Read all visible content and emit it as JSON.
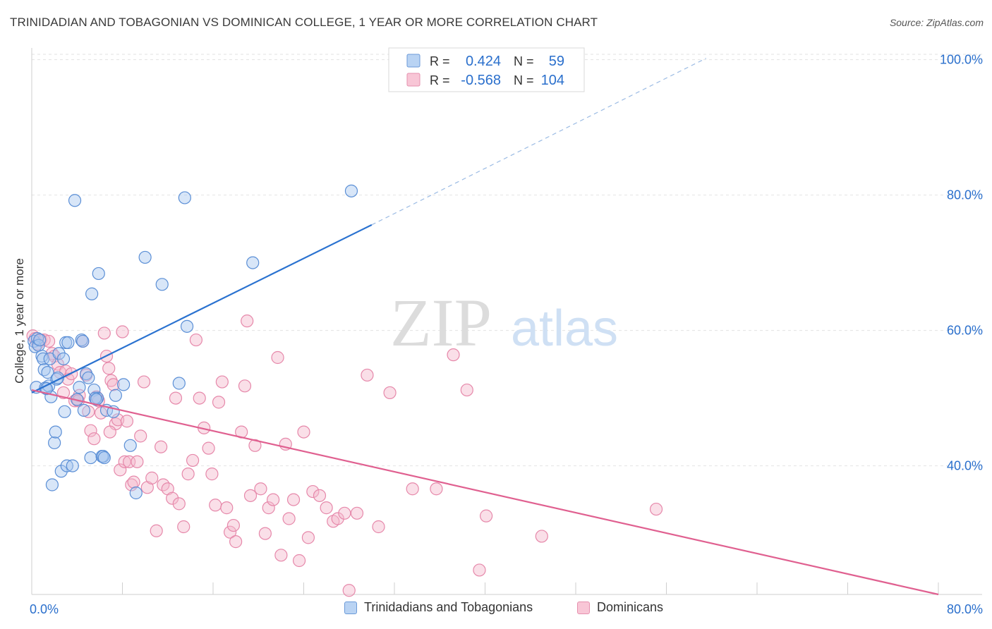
{
  "title": "TRINIDADIAN AND TOBAGONIAN VS DOMINICAN COLLEGE, 1 YEAR OR MORE CORRELATION CHART",
  "source": "Source: ZipAtlas.com",
  "watermark": {
    "zip": "ZIP",
    "atlas": "atlas"
  },
  "colors": {
    "blue_fill": "#a8c8f0",
    "blue_stroke": "#5b8fd6",
    "blue_line": "#2a72d0",
    "pink_fill": "#f5b8cc",
    "pink_stroke": "#e688aa",
    "pink_line": "#e06090",
    "value_text": "#2a6fcc",
    "grid": "#e2e2e2"
  },
  "legend_top": {
    "rows": [
      {
        "r_label": "R =",
        "r_value": "0.424",
        "n_label": "N =",
        "n_value": "59"
      },
      {
        "r_label": "R =",
        "r_value": "-0.568",
        "n_label": "N =",
        "n_value": "104"
      }
    ]
  },
  "legend_bottom": {
    "items": [
      {
        "label": "Trinidadians and Tobagonians"
      },
      {
        "label": "Dominicans"
      }
    ]
  },
  "chart_data": {
    "type": "scatter",
    "ylabel": "College, 1 year or more",
    "x_tick_labels": [
      "0.0%",
      "80.0%"
    ],
    "y_tick_labels": [
      "100.0%",
      "80.0%",
      "60.0%",
      "40.0%"
    ],
    "y_ticks": [
      100,
      80,
      60,
      40
    ],
    "xlim": [
      0,
      80
    ],
    "ylim": [
      21,
      101
    ],
    "grid": true,
    "series": [
      {
        "name": "Trinidadians and Tobagonians",
        "color": "blue",
        "points": [
          [
            0.2,
            58.4
          ],
          [
            0.3,
            57.6
          ],
          [
            0.5,
            58.8
          ],
          [
            0.4,
            51.6
          ],
          [
            0.6,
            57.8
          ],
          [
            0.9,
            56.2
          ],
          [
            1.0,
            55.8
          ],
          [
            1.1,
            54.2
          ],
          [
            1.2,
            51.5
          ],
          [
            1.4,
            53.8
          ],
          [
            1.5,
            51.8
          ],
          [
            1.6,
            55.8
          ],
          [
            1.7,
            50.2
          ],
          [
            1.8,
            37.2
          ],
          [
            2.0,
            43.4
          ],
          [
            2.1,
            45.0
          ],
          [
            2.2,
            52.8
          ],
          [
            2.4,
            56.6
          ],
          [
            2.6,
            39.2
          ],
          [
            2.8,
            55.8
          ],
          [
            2.9,
            48.0
          ],
          [
            3.0,
            58.2
          ],
          [
            3.1,
            40.0
          ],
          [
            3.2,
            58.2
          ],
          [
            3.6,
            40.0
          ],
          [
            3.8,
            79.2
          ],
          [
            4.0,
            49.8
          ],
          [
            4.2,
            51.6
          ],
          [
            4.4,
            58.6
          ],
          [
            4.5,
            58.4
          ],
          [
            4.6,
            48.2
          ],
          [
            4.8,
            53.6
          ],
          [
            5.0,
            53.0
          ],
          [
            5.2,
            41.2
          ],
          [
            5.3,
            65.4
          ],
          [
            5.5,
            51.2
          ],
          [
            5.8,
            50.0
          ],
          [
            5.6,
            50.0
          ],
          [
            5.7,
            49.8
          ],
          [
            5.9,
            68.4
          ],
          [
            6.2,
            41.4
          ],
          [
            6.3,
            41.4
          ],
          [
            6.4,
            41.2
          ],
          [
            6.6,
            48.2
          ],
          [
            7.4,
            50.4
          ],
          [
            7.2,
            48.0
          ],
          [
            8.1,
            52.0
          ],
          [
            8.7,
            43.0
          ],
          [
            9.2,
            36.0
          ],
          [
            10.0,
            70.8
          ],
          [
            11.5,
            66.8
          ],
          [
            13.0,
            52.2
          ],
          [
            13.5,
            79.6
          ],
          [
            13.7,
            60.6
          ],
          [
            19.5,
            70.0
          ],
          [
            28.2,
            80.6
          ],
          [
            0.7,
            58.6
          ],
          [
            1.3,
            51.4
          ],
          [
            2.3,
            53.0
          ]
        ]
      },
      {
        "name": "Dominicans",
        "color": "pink",
        "points": [
          [
            0.1,
            59.2
          ],
          [
            0.3,
            58.8
          ],
          [
            0.5,
            58.0
          ],
          [
            0.8,
            58.6
          ],
          [
            1.1,
            58.6
          ],
          [
            1.5,
            58.4
          ],
          [
            1.8,
            56.6
          ],
          [
            2.0,
            56.2
          ],
          [
            2.3,
            55.0
          ],
          [
            2.5,
            53.8
          ],
          [
            2.8,
            50.8
          ],
          [
            3.0,
            54.0
          ],
          [
            3.2,
            52.8
          ],
          [
            3.5,
            53.6
          ],
          [
            3.8,
            49.6
          ],
          [
            4.0,
            49.8
          ],
          [
            4.2,
            50.4
          ],
          [
            4.5,
            58.4
          ],
          [
            4.8,
            53.4
          ],
          [
            5.0,
            48.0
          ],
          [
            5.2,
            45.2
          ],
          [
            5.5,
            44.0
          ],
          [
            5.7,
            50.2
          ],
          [
            5.9,
            49.6
          ],
          [
            6.1,
            47.8
          ],
          [
            6.4,
            59.6
          ],
          [
            6.6,
            56.2
          ],
          [
            6.8,
            54.4
          ],
          [
            7.0,
            52.6
          ],
          [
            7.2,
            52.0
          ],
          [
            7.4,
            46.2
          ],
          [
            7.6,
            46.8
          ],
          [
            7.8,
            39.4
          ],
          [
            8.0,
            59.8
          ],
          [
            8.2,
            40.6
          ],
          [
            8.4,
            46.6
          ],
          [
            8.6,
            40.6
          ],
          [
            8.8,
            37.2
          ],
          [
            9.0,
            37.6
          ],
          [
            9.3,
            40.6
          ],
          [
            9.6,
            44.4
          ],
          [
            9.9,
            52.4
          ],
          [
            10.2,
            36.8
          ],
          [
            10.6,
            38.2
          ],
          [
            11.0,
            30.4
          ],
          [
            11.4,
            42.8
          ],
          [
            11.6,
            37.2
          ],
          [
            12.0,
            36.6
          ],
          [
            12.4,
            35.2
          ],
          [
            12.7,
            50.0
          ],
          [
            13.0,
            34.4
          ],
          [
            13.4,
            31.0
          ],
          [
            13.8,
            38.8
          ],
          [
            14.2,
            40.8
          ],
          [
            14.5,
            58.6
          ],
          [
            14.8,
            50.0
          ],
          [
            15.2,
            45.6
          ],
          [
            15.6,
            42.6
          ],
          [
            15.9,
            38.8
          ],
          [
            16.2,
            34.2
          ],
          [
            16.5,
            49.4
          ],
          [
            16.8,
            52.4
          ],
          [
            17.2,
            33.8
          ],
          [
            17.5,
            30.2
          ],
          [
            17.8,
            31.2
          ],
          [
            18.0,
            28.8
          ],
          [
            18.5,
            45.0
          ],
          [
            18.8,
            51.8
          ],
          [
            19.0,
            61.4
          ],
          [
            19.3,
            35.6
          ],
          [
            19.7,
            43.0
          ],
          [
            20.2,
            36.6
          ],
          [
            20.6,
            30.0
          ],
          [
            20.9,
            33.8
          ],
          [
            21.3,
            35.0
          ],
          [
            21.7,
            56.0
          ],
          [
            22.0,
            26.8
          ],
          [
            22.4,
            43.2
          ],
          [
            22.7,
            32.2
          ],
          [
            23.1,
            35.0
          ],
          [
            23.6,
            26.0
          ],
          [
            24.0,
            45.0
          ],
          [
            24.4,
            29.4
          ],
          [
            24.8,
            36.2
          ],
          [
            25.4,
            35.6
          ],
          [
            26.0,
            33.8
          ],
          [
            26.6,
            31.8
          ],
          [
            27.0,
            32.2
          ],
          [
            27.6,
            33.0
          ],
          [
            28.0,
            21.6
          ],
          [
            28.7,
            33.0
          ],
          [
            29.6,
            53.4
          ],
          [
            30.6,
            31.0
          ],
          [
            31.6,
            50.8
          ],
          [
            33.6,
            36.6
          ],
          [
            35.7,
            36.6
          ],
          [
            37.2,
            56.4
          ],
          [
            38.4,
            51.2
          ],
          [
            39.5,
            24.6
          ],
          [
            40.1,
            32.6
          ],
          [
            45.0,
            29.6
          ],
          [
            55.1,
            33.6
          ],
          [
            4.1,
            49.6
          ],
          [
            6.9,
            45.0
          ]
        ]
      }
    ],
    "trend_lines": [
      {
        "series": "Trinidadians and Tobagonians",
        "from": [
          0,
          50.8
        ],
        "to": [
          30,
          75.6
        ],
        "dashed_to": [
          59.5,
          100.2
        ]
      },
      {
        "series": "Dominicans",
        "from": [
          0,
          51.2
        ],
        "to": [
          80,
          21.0
        ]
      }
    ]
  }
}
